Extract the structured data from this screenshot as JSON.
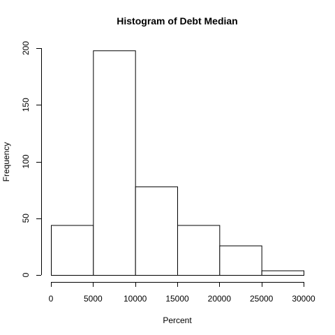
{
  "chart_data": {
    "type": "bar",
    "title": "Histogram of Debt Median",
    "xlabel": "Percent",
    "ylabel": "Frequency",
    "bins": [
      {
        "x0": 0,
        "x1": 5000,
        "count": 44
      },
      {
        "x0": 5000,
        "x1": 10000,
        "count": 198
      },
      {
        "x0": 10000,
        "x1": 15000,
        "count": 78
      },
      {
        "x0": 15000,
        "x1": 20000,
        "count": 44
      },
      {
        "x0": 20000,
        "x1": 25000,
        "count": 26
      },
      {
        "x0": 25000,
        "x1": 30000,
        "count": 4
      }
    ],
    "x_ticks": [
      0,
      5000,
      10000,
      15000,
      20000,
      25000,
      30000
    ],
    "x_tick_labels": [
      "0",
      "5000",
      "10000",
      "15000",
      "20000",
      "25000",
      "30000"
    ],
    "y_ticks": [
      0,
      50,
      100,
      150,
      200
    ],
    "y_tick_labels": [
      "0",
      "50",
      "100",
      "150",
      "200"
    ],
    "xlim": [
      0,
      30000
    ],
    "ylim": [
      0,
      200
    ],
    "grid": false,
    "legend": "none"
  }
}
